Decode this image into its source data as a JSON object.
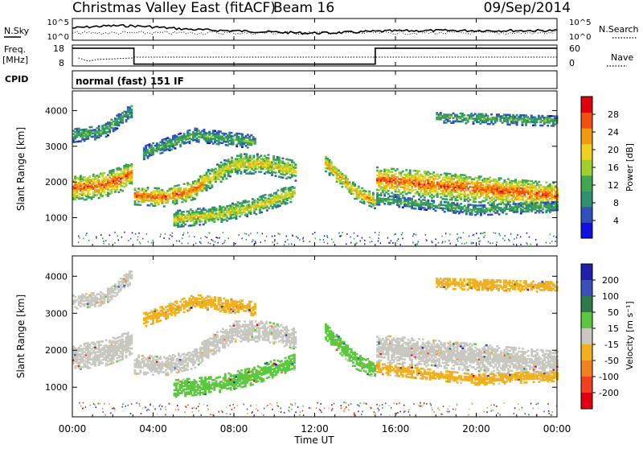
{
  "header": {
    "title": "Christmas Valley East (fitACF)",
    "beam": "Beam 16",
    "date": "09/Sep/2014"
  },
  "top_panels": {
    "nsky_label": "N.Sky",
    "nsearch_label": "N.Search",
    "nsky_ticks": [
      "10^5",
      "10^0"
    ],
    "nsearch_ticks": [
      "10^5",
      "10^0"
    ],
    "freq_label": "Freq.",
    "freq_unit": "[MHz]",
    "freq_ticks": [
      "18",
      "8"
    ],
    "nave_label": "Nave",
    "nave_ticks": [
      "60",
      "0"
    ],
    "cpid_label": "CPID",
    "cpid_text": "normal (fast) 151 IF"
  },
  "chart_data": [
    {
      "type": "heatmap",
      "name": "power",
      "ylabel": "Slant Range [km]",
      "yticks": [
        "1000",
        "2000",
        "3000",
        "4000"
      ],
      "ylim": [
        200,
        4550
      ],
      "colorbar_label": "Power [dB]",
      "colorbar_ticks": [
        "4",
        "8",
        "12",
        "16",
        "20",
        "24",
        "28"
      ],
      "colorbar_colors": [
        "#1010e0",
        "#3050c0",
        "#2f8f6f",
        "#3fa84f",
        "#9fd030",
        "#f0d020",
        "#f09a10",
        "#f05010",
        "#e00010"
      ]
    },
    {
      "type": "heatmap",
      "name": "velocity",
      "ylabel": "Slant Range [km]",
      "yticks": [
        "1000",
        "2000",
        "3000",
        "4000"
      ],
      "ylim": [
        200,
        4550
      ],
      "colorbar_label": "Velocity [m s⁻¹]",
      "colorbar_ticks": [
        "200",
        "100",
        "50",
        "15",
        "-15",
        "-50",
        "-100",
        "-200"
      ],
      "colorbar_colors": [
        "#2020b0",
        "#3a4fb8",
        "#2f7a4a",
        "#5cc840",
        "#c8c8c0",
        "#f0b020",
        "#f08020",
        "#f04020",
        "#e00010"
      ]
    }
  ],
  "x_axis": {
    "ticks": [
      "00:00",
      "04:00",
      "08:00",
      "12:00",
      "16:00",
      "20:00",
      "00:00"
    ],
    "label": "Time UT"
  }
}
